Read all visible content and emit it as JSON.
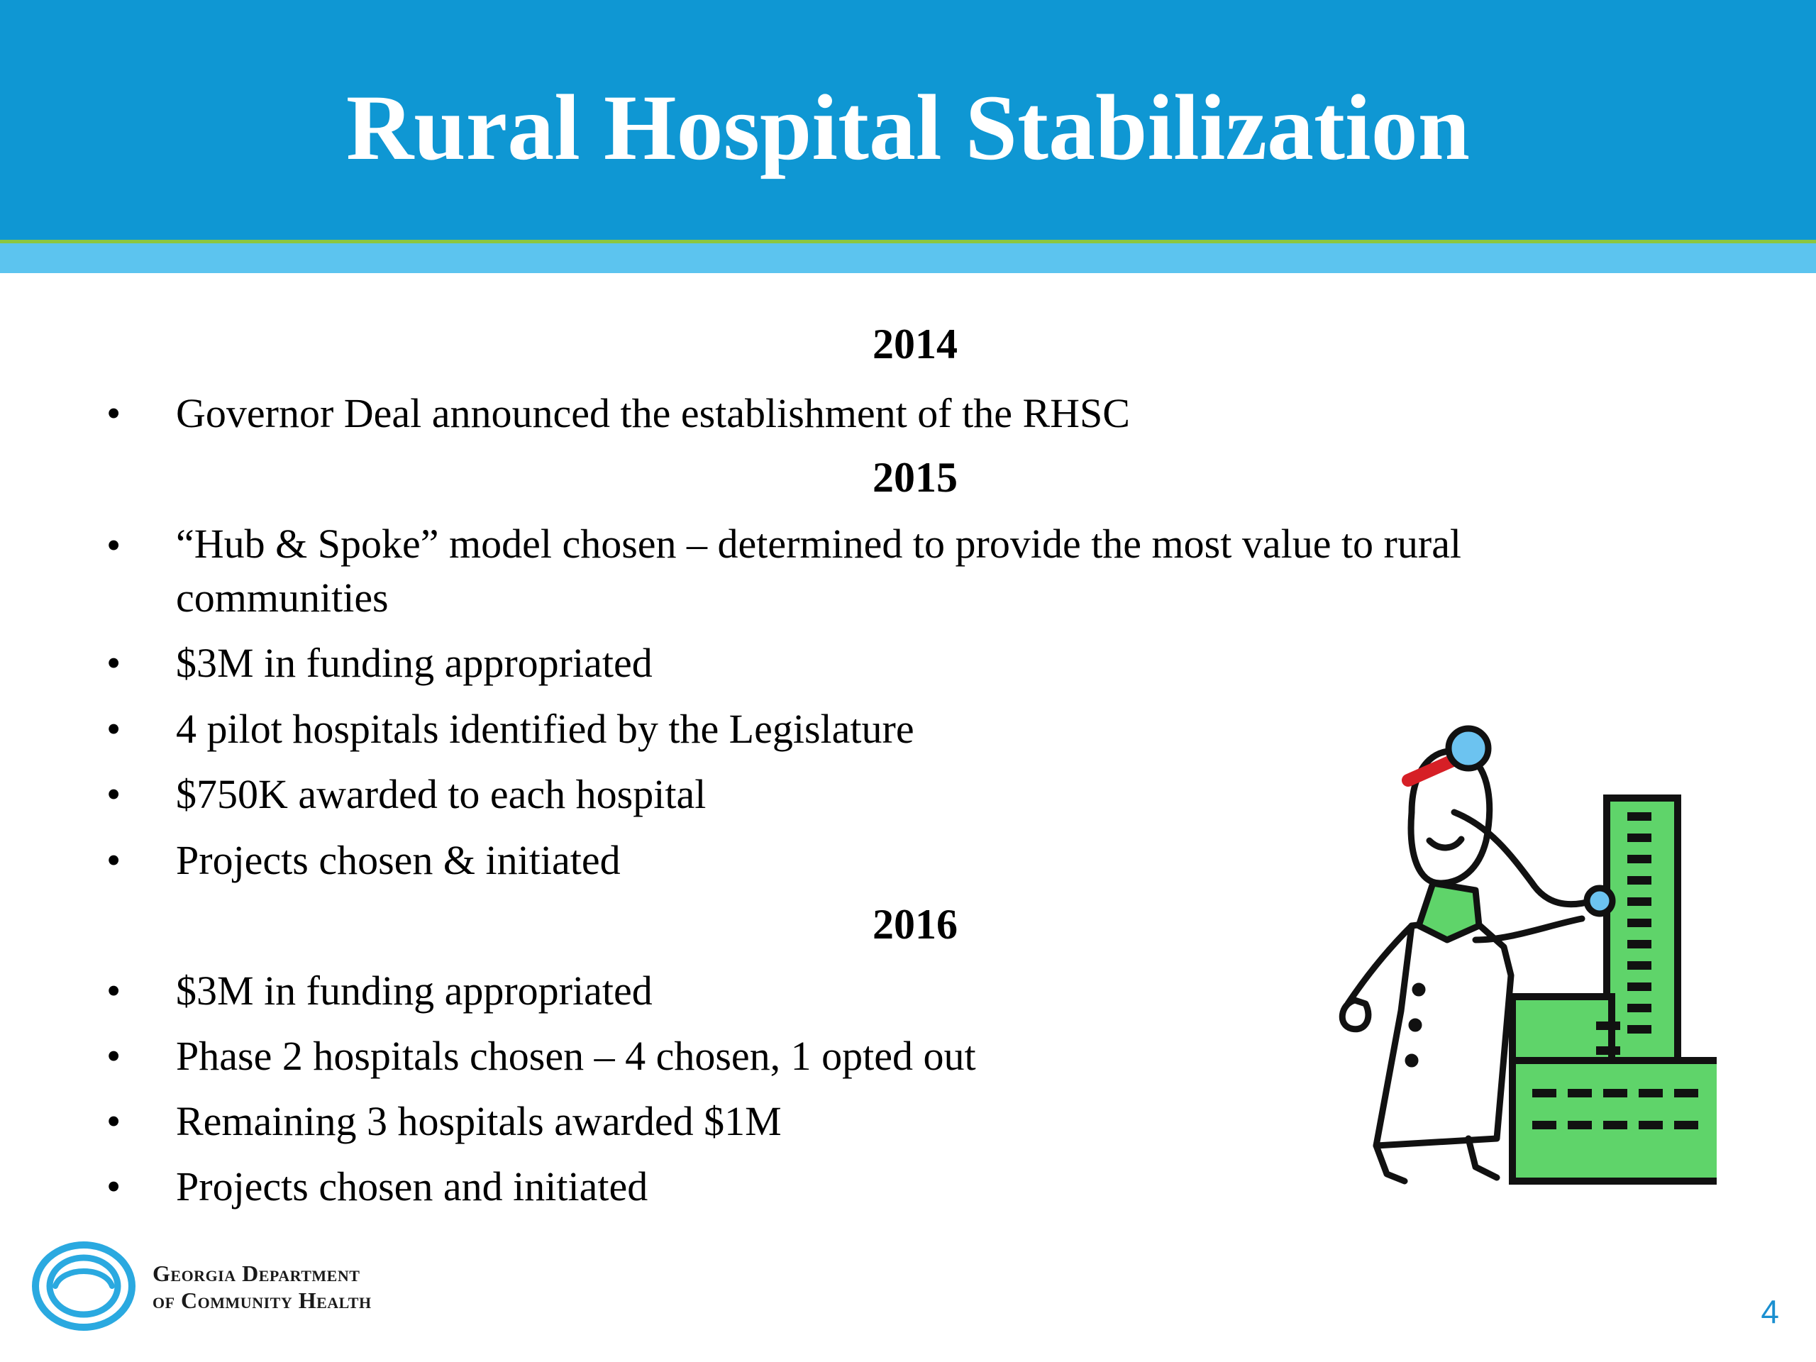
{
  "slide": {
    "title": "Rural Hospital Stabilization",
    "page_number": "4"
  },
  "sections": [
    {
      "year": "2014",
      "bullets": [
        "Governor Deal announced the establishment of the RHSC"
      ]
    },
    {
      "year": "2015",
      "bullets": [
        "“Hub & Spoke” model chosen – determined to provide the most value to rural communities",
        "$3M in funding appropriated",
        "4 pilot hospitals identified by the Legislature",
        "$750K awarded to each hospital",
        "Projects chosen & initiated"
      ]
    },
    {
      "year": "2016",
      "bullets": [
        "$3M in funding appropriated",
        "Phase 2 hospitals chosen – 4 chosen, 1 opted out",
        "Remaining 3 hospitals awarded $1M",
        "Projects chosen and initiated"
      ]
    }
  ],
  "footer": {
    "org_line1": "Georgia Department",
    "org_line2": "of Community Health"
  },
  "colors": {
    "header": "#0f97d3",
    "accent_green": "#8cc63f",
    "accent_light_blue": "#5cc4ef",
    "building_green": "#5fd46a"
  },
  "bullet_glyph": "•"
}
